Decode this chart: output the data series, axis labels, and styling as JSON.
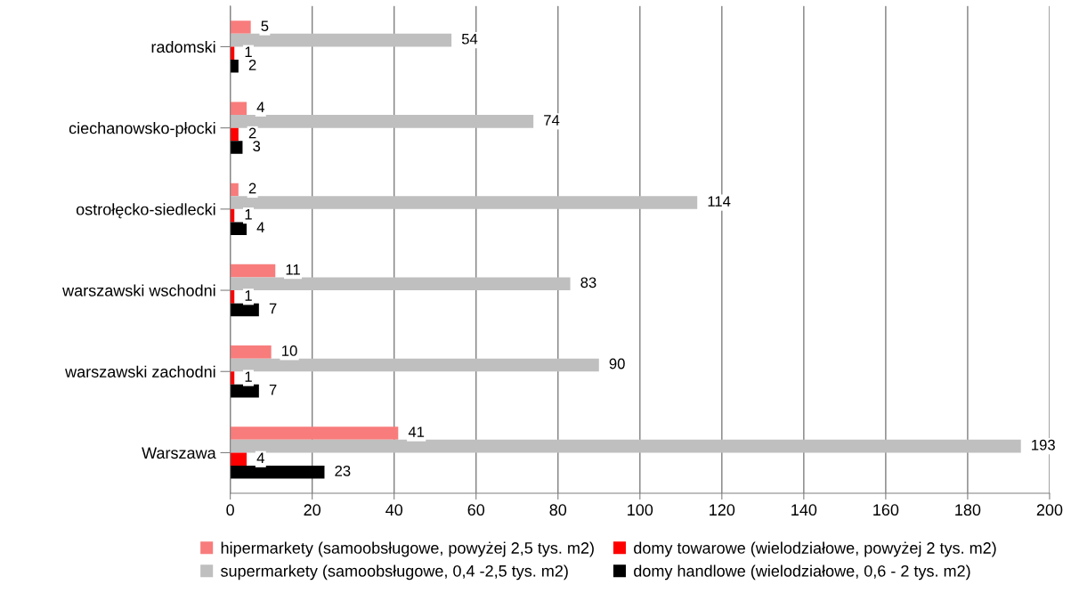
{
  "chart_data": {
    "type": "bar",
    "orientation": "horizontal",
    "categories": [
      "radomski",
      "ciechanowsko-płocki",
      "ostrołęcko-siedlecki",
      "warszawski wschodni",
      "warszawski zachodni",
      "Warszawa"
    ],
    "series": [
      {
        "name": "hipermarkety (samoobsługowe, powyżej 2,5 tys. m2)",
        "color": "#f87c7c",
        "values": [
          5,
          4,
          2,
          11,
          10,
          41
        ]
      },
      {
        "name": "supermarkety (samoobsługowe, 0,4 -2,5 tys. m2)",
        "color": "#bfbfbf",
        "values": [
          54,
          74,
          114,
          83,
          90,
          193
        ]
      },
      {
        "name": "domy towarowe (wielodziałowe, powyżej 2 tys. m2)",
        "color": "#ff0000",
        "values": [
          1,
          2,
          1,
          1,
          1,
          4
        ]
      },
      {
        "name": "domy handlowe (wielodziałowe, 0,6 - 2 tys. m2)",
        "color": "#000000",
        "values": [
          2,
          3,
          4,
          7,
          7,
          23
        ]
      }
    ],
    "xlim": [
      0,
      200
    ],
    "xticks": [
      0,
      20,
      40,
      60,
      80,
      100,
      120,
      140,
      160,
      180,
      200
    ],
    "grid": "x",
    "legend": "bottom",
    "data_labels": true
  }
}
